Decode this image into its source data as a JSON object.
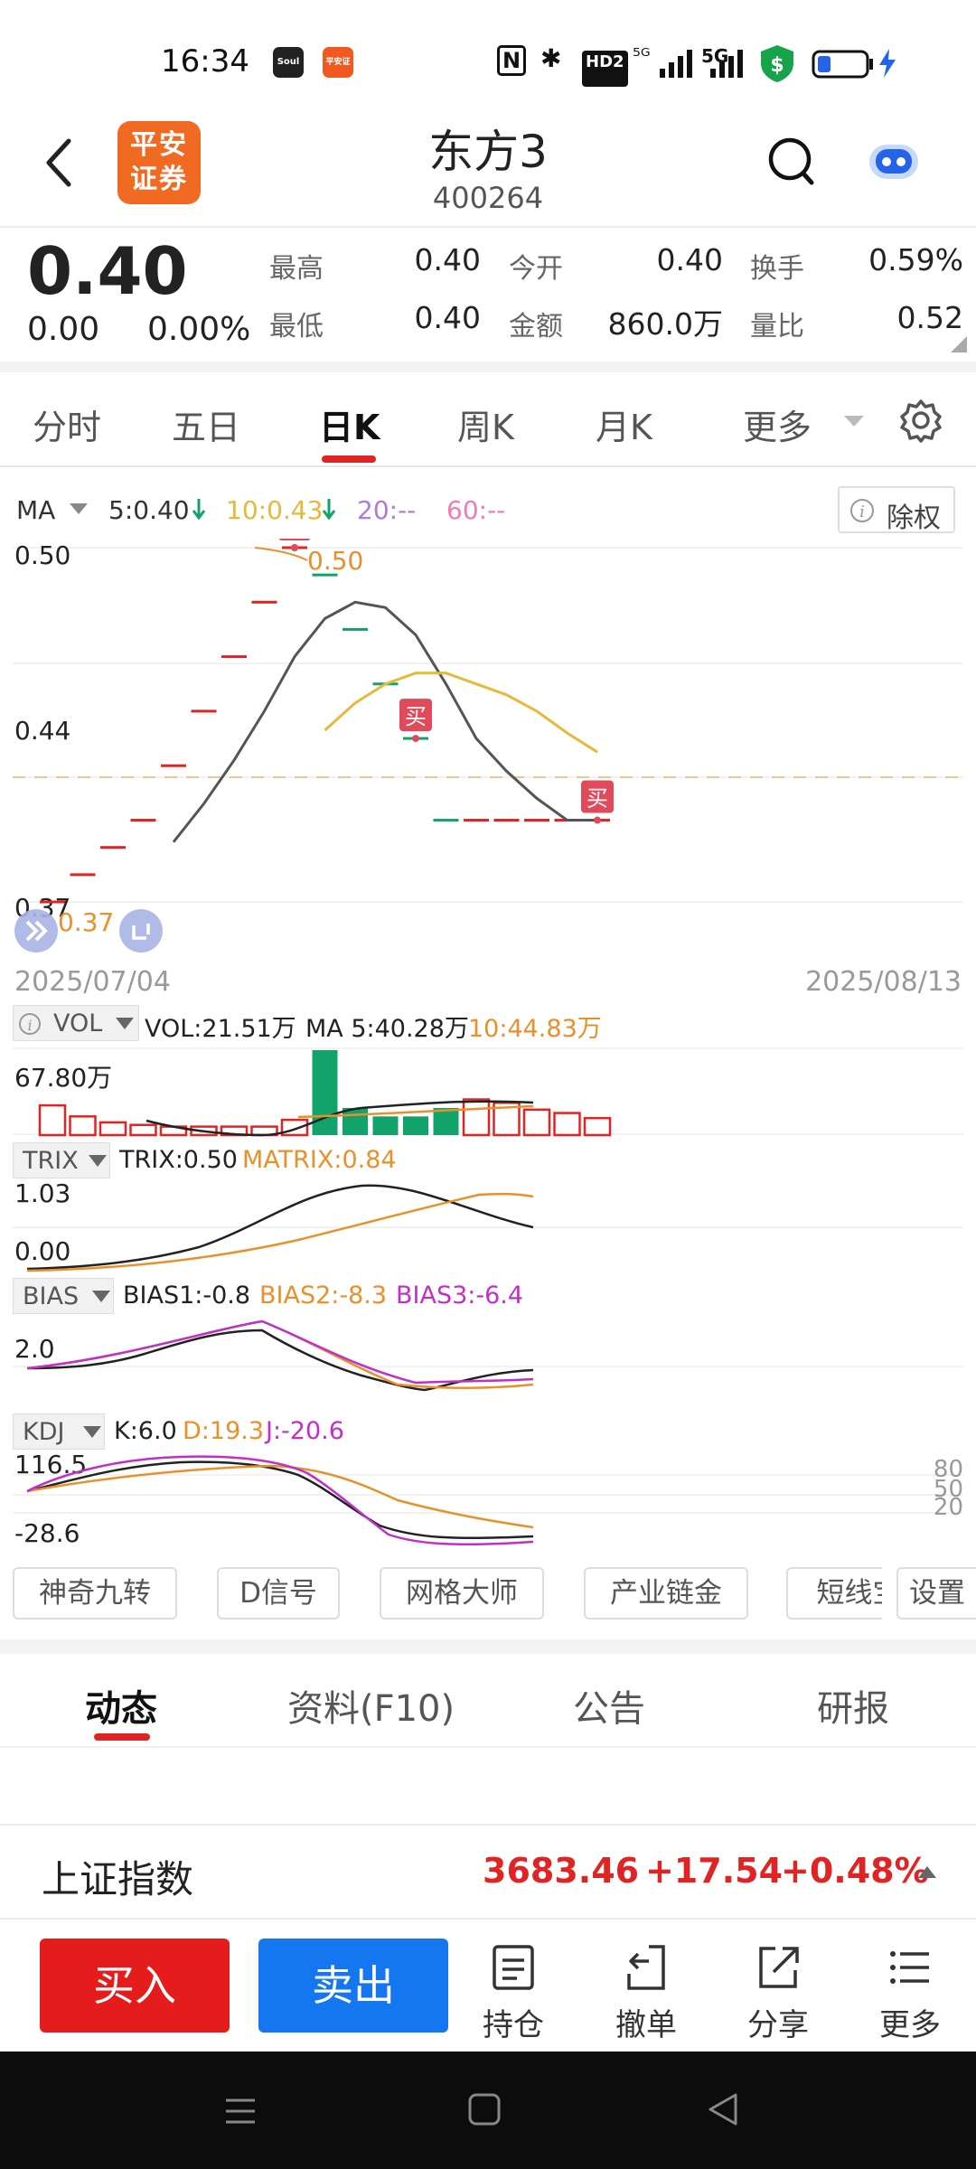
{
  "status_bar": {
    "time": "16:34",
    "app1": "Soul",
    "app2": "平安证券",
    "nfc": "N",
    "bt": "✱",
    "hd": "HD2",
    "sig1": "⁵ᴳ",
    "sig2": "5G"
  },
  "header": {
    "logo": "平安证券",
    "title": "东方3",
    "code": "400264"
  },
  "quote": {
    "price": "0.40",
    "change": "0.00",
    "change_pct": "0.00%",
    "high_label": "最高",
    "high": "0.40",
    "low_label": "最低",
    "low": "0.40",
    "open_label": "今开",
    "open": "0.40",
    "amount_label": "金额",
    "amount": "860.0万",
    "turnover_label": "换手",
    "turnover": "0.59%",
    "vol_ratio_label": "量比",
    "vol_ratio": "0.52"
  },
  "tabs": [
    "分时",
    "五日",
    "日K",
    "周K",
    "月K",
    "更多"
  ],
  "ma_legend": {
    "label": "MA",
    "ma5": "5:0.40",
    "ma10": "10:0.43",
    "ma20": "20:--",
    "ma60": "60:--",
    "exright": "除权"
  },
  "kline": {
    "y_top": "0.50",
    "y_mid": "0.44",
    "y_bot": "0.37",
    "max_note": "0.50",
    "min_note": "0.37",
    "date_start": "2025/07/04",
    "date_end": "2025/08/13",
    "buy_marker": "买",
    "closes": [
      0.37,
      0.38,
      0.39,
      0.4,
      0.42,
      0.44,
      0.46,
      0.48,
      0.5,
      0.49,
      0.47,
      0.45,
      0.43,
      0.4,
      0.4,
      0.4,
      0.4,
      0.4,
      0.4
    ],
    "ma5": [
      null,
      null,
      null,
      null,
      0.392,
      0.406,
      0.422,
      0.44,
      0.46,
      0.474,
      0.48,
      0.478,
      0.468,
      0.45,
      0.43,
      0.418,
      0.408,
      0.4,
      0.4
    ],
    "ma10": [
      null,
      null,
      null,
      null,
      null,
      null,
      null,
      null,
      null,
      0.433,
      0.443,
      0.45,
      0.454,
      0.454,
      0.45,
      0.446,
      0.44,
      0.432,
      0.425
    ]
  },
  "vol": {
    "label": "VOL",
    "vol": "VOL:21.51万",
    "ma5": "MA 5:40.28万",
    "ma10": "10:44.83万",
    "ymax": "67.80万"
  },
  "trix": {
    "label": "TRIX",
    "trix": "TRIX:0.50",
    "matrix": "MATRIX:0.84",
    "ytop": "1.03",
    "ybot": "0.00"
  },
  "bias": {
    "label": "BIAS",
    "b1": "BIAS1:-0.8",
    "b2": "BIAS2:-8.3",
    "b3": "BIAS3:-6.4",
    "y": "2.0"
  },
  "kdj": {
    "label": "KDJ",
    "k": "K:6.0",
    "d": "D:19.3",
    "j": "J:-20.6",
    "ytop": "116.5",
    "ybot": "-28.6",
    "r80": "80",
    "r50": "50",
    "r20": "20"
  },
  "chips": [
    "神奇九转",
    "D信号",
    "网格大师",
    "产业链金",
    "短线宝",
    "设置"
  ],
  "bottom_tabs": [
    "动态",
    "资料(F10)",
    "公告",
    "研报"
  ],
  "index": {
    "name": "上证指数",
    "value": "3683.46",
    "change": "+17.54",
    "pct": "+0.48%"
  },
  "toolbar": {
    "buy": "买入",
    "sell": "卖出",
    "position": "持仓",
    "cancel": "撤单",
    "share": "分享",
    "more": "更多"
  },
  "colors": {
    "red": "#e02424",
    "green": "#11a36a",
    "orange": "#e8902a",
    "yellow": "#e6b93a",
    "purple": "#c030c8",
    "blue": "#1477f0"
  }
}
